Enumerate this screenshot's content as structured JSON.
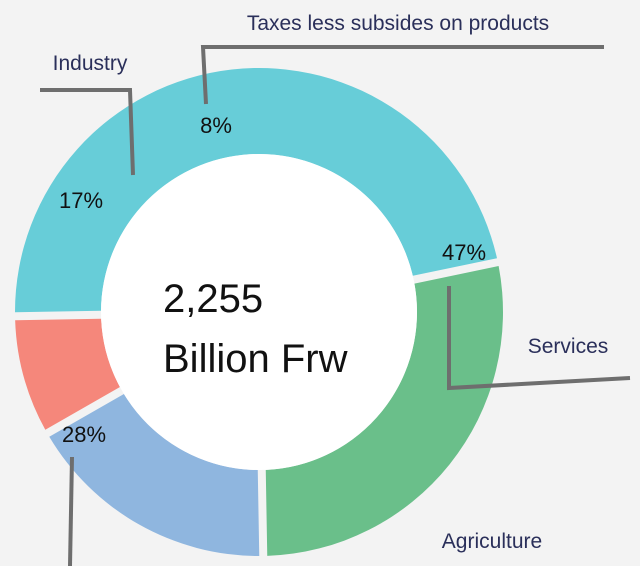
{
  "chart_data": {
    "type": "pie",
    "variant": "donut",
    "center_text": [
      "2,255",
      "Billion Frw"
    ],
    "slices": [
      {
        "label": "Services",
        "value": 47,
        "value_label": "47%",
        "color": "#67cdd8"
      },
      {
        "label": "Agriculture",
        "value": 28,
        "value_label": "28%",
        "color": "#6abf8a"
      },
      {
        "label": "Industry",
        "value": 17,
        "value_label": "17%",
        "color": "#8fb6df"
      },
      {
        "label": "Taxes less subsides on products",
        "value": 8,
        "value_label": "8%",
        "color": "#f5877b"
      }
    ],
    "leader_line_color": "#6e6e6e"
  }
}
